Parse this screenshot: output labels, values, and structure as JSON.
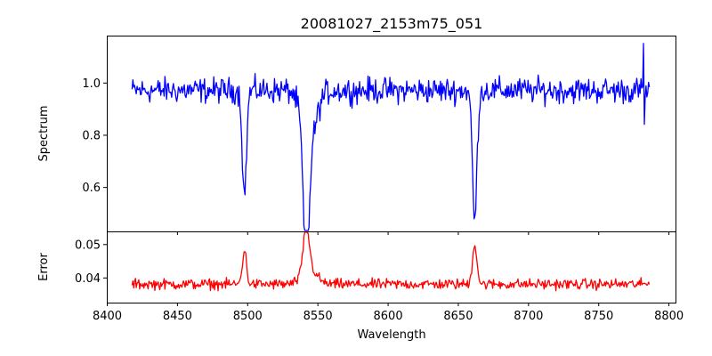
{
  "chart_data": [
    {
      "type": "line",
      "title": "20081027_2153m75_051",
      "ylabel": "Spectrum",
      "xlim": [
        8400,
        8805
      ],
      "ylim": [
        0.43,
        1.18
      ],
      "xticks": [
        8400,
        8450,
        8500,
        8550,
        8600,
        8650,
        8700,
        8750,
        8800
      ],
      "yticks": [
        0.6,
        0.8,
        1.0
      ],
      "ytick_labels": [
        "0.6",
        "0.8",
        "1.0"
      ],
      "series": [
        {
          "color": "#0000ff",
          "x_range": [
            8418,
            8787
          ],
          "continuum": 0.97,
          "noise": 0.04,
          "features": [
            {
              "x": 8498,
              "depth": 0.4,
              "width": 1.5
            },
            {
              "x": 8542,
              "depth": 0.5,
              "width": 2.0
            },
            {
              "x": 8544,
              "depth": 0.2,
              "width": 5.0
            },
            {
              "x": 8662,
              "depth": 0.5,
              "width": 1.6
            }
          ],
          "spikes": [
            {
              "x": 8782,
              "y": 1.15
            },
            {
              "x": 8783,
              "y": 0.84
            }
          ]
        }
      ]
    },
    {
      "type": "line",
      "xlabel": "Wavelength",
      "ylabel": "Error",
      "xlim": [
        8400,
        8805
      ],
      "ylim": [
        0.0325,
        0.0538
      ],
      "xticks": [
        8400,
        8450,
        8500,
        8550,
        8600,
        8650,
        8700,
        8750,
        8800
      ],
      "xtick_labels": [
        "8400",
        "8450",
        "8500",
        "8550",
        "8600",
        "8650",
        "8700",
        "8750",
        "8800"
      ],
      "yticks": [
        0.04,
        0.05
      ],
      "ytick_labels": [
        "0.04",
        "0.05"
      ],
      "series": [
        {
          "color": "#ff0000",
          "x_range": [
            8418,
            8787
          ],
          "baseline": 0.038,
          "noise": 0.0013,
          "features": [
            {
              "x": 8498,
              "height": 0.01,
              "width": 1.5
            },
            {
              "x": 8542,
              "height": 0.013,
              "width": 2.0
            },
            {
              "x": 8544,
              "height": 0.005,
              "width": 5.0
            },
            {
              "x": 8662,
              "height": 0.012,
              "width": 1.6
            }
          ]
        }
      ]
    }
  ]
}
